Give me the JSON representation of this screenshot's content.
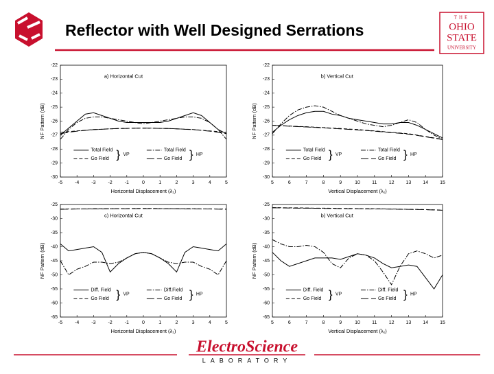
{
  "slide": {
    "title": "Reflector with Well Designed Serrations",
    "university": [
      "THE",
      "OHIO",
      "STATE",
      "UNIVERSITY"
    ],
    "lab": "ElectroScience",
    "lab_sub": "LABORATORY"
  },
  "chart_data": [
    {
      "type": "line",
      "annotation": "a) Horizontal Cut",
      "xlabel": "Horizontal Displacement (λ₁)",
      "ylabel": "NF Pattern (dB)",
      "x": [
        -5,
        -4.5,
        -4,
        -3.5,
        -3,
        -2.5,
        -2,
        -1.5,
        -1,
        -0.5,
        0,
        0.5,
        1,
        1.5,
        2,
        2.5,
        3,
        3.5,
        4,
        4.5,
        5
      ],
      "xlim": [
        -5,
        5
      ],
      "xticks": [
        -5,
        -4,
        -3,
        -2,
        -1,
        0,
        1,
        2,
        3,
        4,
        5
      ],
      "ylim": [
        -30,
        -22
      ],
      "yticks": [
        -30,
        -29,
        -28,
        -27,
        -26,
        -25,
        -24,
        -23,
        -22
      ],
      "series": [
        {
          "name": "Total Field",
          "group": "VP",
          "dash": "solid",
          "color": "#000000",
          "values": [
            -27.0,
            -26.5,
            -26.0,
            -25.5,
            -25.4,
            -25.6,
            -25.8,
            -26.0,
            -26.1,
            -26.1,
            -26.1,
            -26.1,
            -26.1,
            -26.0,
            -25.8,
            -25.6,
            -25.4,
            -25.6,
            -26.1,
            -26.6,
            -26.9
          ]
        },
        {
          "name": "Go Field",
          "group": "VP",
          "dash": "dashed",
          "color": "#000000",
          "values": [
            -26.8,
            -26.75,
            -26.7,
            -26.65,
            -26.6,
            -26.58,
            -26.55,
            -26.53,
            -26.52,
            -26.5,
            -26.5,
            -26.5,
            -26.52,
            -26.53,
            -26.55,
            -26.58,
            -26.6,
            -26.65,
            -26.7,
            -26.75,
            -26.8
          ]
        },
        {
          "name": "Total Field",
          "group": "HP",
          "dash": "dashdot",
          "color": "#000000",
          "values": [
            -27.3,
            -26.6,
            -26.1,
            -25.8,
            -25.7,
            -25.7,
            -25.8,
            -25.9,
            -26.0,
            -26.1,
            -26.2,
            -26.1,
            -26.0,
            -25.9,
            -25.8,
            -25.7,
            -25.7,
            -25.8,
            -26.1,
            -26.6,
            -27.3
          ]
        },
        {
          "name": "Go Field",
          "group": "HP",
          "dash": "longdash",
          "color": "#000000",
          "values": [
            -26.9,
            -26.8,
            -26.72,
            -26.66,
            -26.61,
            -26.58,
            -26.55,
            -26.53,
            -26.52,
            -26.51,
            -26.5,
            -26.51,
            -26.52,
            -26.53,
            -26.55,
            -26.58,
            -26.61,
            -26.66,
            -26.72,
            -26.8,
            -26.9
          ]
        }
      ]
    },
    {
      "type": "line",
      "annotation": "b) Vertical Cut",
      "xlabel": "Vertical Displacement (λ₁)",
      "ylabel": "NF Pattern (dB)",
      "x": [
        5,
        5.5,
        6,
        6.5,
        7,
        7.5,
        8,
        8.5,
        9,
        9.5,
        10,
        10.5,
        11,
        11.5,
        12,
        12.5,
        13,
        13.5,
        14,
        14.5,
        15
      ],
      "xlim": [
        5,
        15
      ],
      "xticks": [
        5,
        6,
        7,
        8,
        9,
        10,
        11,
        12,
        13,
        14,
        15
      ],
      "ylim": [
        -30,
        -22
      ],
      "yticks": [
        -30,
        -29,
        -28,
        -27,
        -26,
        -25,
        -24,
        -23,
        -22
      ],
      "series": [
        {
          "name": "Total Field",
          "group": "VP",
          "dash": "solid",
          "color": "#000000",
          "values": [
            -26.8,
            -26.3,
            -25.9,
            -25.6,
            -25.4,
            -25.3,
            -25.3,
            -25.5,
            -25.6,
            -25.8,
            -25.9,
            -26.0,
            -26.1,
            -26.2,
            -26.2,
            -26.1,
            -26.1,
            -26.3,
            -26.6,
            -26.9,
            -27.2
          ]
        },
        {
          "name": "Go Field",
          "group": "VP",
          "dash": "dashed",
          "color": "#000000",
          "values": [
            -26.3,
            -26.32,
            -26.35,
            -26.38,
            -26.4,
            -26.43,
            -26.46,
            -26.5,
            -26.53,
            -26.57,
            -26.6,
            -26.65,
            -26.7,
            -26.75,
            -26.8,
            -26.85,
            -26.9,
            -27.0,
            -27.1,
            -27.2,
            -27.3
          ]
        },
        {
          "name": "Total Field",
          "group": "HP",
          "dash": "dashdot",
          "color": "#000000",
          "values": [
            -26.9,
            -26.2,
            -25.6,
            -25.2,
            -25.0,
            -24.9,
            -25.0,
            -25.3,
            -25.6,
            -25.8,
            -26.0,
            -26.2,
            -26.3,
            -26.4,
            -26.3,
            -26.1,
            -25.9,
            -26.1,
            -26.6,
            -27.0,
            -27.3
          ]
        },
        {
          "name": "Go Field",
          "group": "HP",
          "dash": "longdash",
          "color": "#000000",
          "values": [
            -26.3,
            -26.33,
            -26.36,
            -26.39,
            -26.42,
            -26.45,
            -26.48,
            -26.52,
            -26.55,
            -26.59,
            -26.63,
            -26.67,
            -26.72,
            -26.77,
            -26.82,
            -26.87,
            -26.93,
            -27.02,
            -27.12,
            -27.22,
            -27.32
          ]
        }
      ]
    },
    {
      "type": "line",
      "annotation": "c) Horizontal Cut",
      "xlabel": "Horizontal Displacement (λ₁)",
      "ylabel": "NF Pattern (dB)",
      "x": [
        -5,
        -4.5,
        -4,
        -3.5,
        -3,
        -2.5,
        -2,
        -1.5,
        -1,
        -0.5,
        0,
        0.5,
        1,
        1.5,
        2,
        2.5,
        3,
        3.5,
        4,
        4.5,
        5
      ],
      "xlim": [
        -5,
        5
      ],
      "xticks": [
        -5,
        -4,
        -3,
        -2,
        -1,
        0,
        1,
        2,
        3,
        4,
        5
      ],
      "ylim": [
        -65,
        -25
      ],
      "yticks": [
        -65,
        -60,
        -55,
        -50,
        -45,
        -40,
        -35,
        -30,
        -25
      ],
      "series": [
        {
          "name": "Diff. Field",
          "group": "VP",
          "dash": "solid",
          "color": "#000000",
          "values": [
            -39,
            -41.5,
            -41,
            -40.5,
            -40,
            -42,
            -49,
            -46,
            -44,
            -42.5,
            -42,
            -42.5,
            -44,
            -46,
            -49,
            -42,
            -40,
            -40.5,
            -41,
            -41.5,
            -39
          ]
        },
        {
          "name": "Go Field",
          "group": "VP",
          "dash": "dashed",
          "color": "#000000",
          "values": [
            -26.6,
            -26.6,
            -26.55,
            -26.55,
            -26.5,
            -26.5,
            -26.5,
            -26.45,
            -26.45,
            -26.4,
            -26.4,
            -26.4,
            -26.45,
            -26.45,
            -26.5,
            -26.5,
            -26.5,
            -26.55,
            -26.55,
            -26.6,
            -26.6
          ]
        },
        {
          "name": "Diff.Field",
          "group": "HP",
          "dash": "dashdot",
          "color": "#000000",
          "values": [
            -45,
            -50,
            -48,
            -47,
            -45.5,
            -45.5,
            -46,
            -45.5,
            -44,
            -42.5,
            -42,
            -42.5,
            -44,
            -45.5,
            -46,
            -45.5,
            -45.5,
            -47,
            -48,
            -50,
            -45
          ]
        },
        {
          "name": "Go Field",
          "group": "HP",
          "dash": "longdash",
          "color": "#000000",
          "values": [
            -26.7,
            -26.65,
            -26.6,
            -26.6,
            -26.55,
            -26.55,
            -26.5,
            -26.5,
            -26.5,
            -26.45,
            -26.45,
            -26.45,
            -26.5,
            -26.5,
            -26.5,
            -26.55,
            -26.55,
            -26.6,
            -26.6,
            -26.65,
            -26.7
          ]
        }
      ]
    },
    {
      "type": "line",
      "annotation": "b) Vertical Cut",
      "xlabel": "Vertical Displacement (λ₁)",
      "ylabel": "NF Pattern (dB)",
      "x": [
        5,
        5.5,
        6,
        6.5,
        7,
        7.5,
        8,
        8.5,
        9,
        9.5,
        10,
        10.5,
        11,
        11.5,
        12,
        12.5,
        13,
        13.5,
        14,
        14.5,
        15
      ],
      "xlim": [
        5,
        15
      ],
      "xticks": [
        5,
        6,
        7,
        8,
        9,
        10,
        11,
        12,
        13,
        14,
        15
      ],
      "ylim": [
        -65,
        -25
      ],
      "yticks": [
        -65,
        -60,
        -55,
        -50,
        -45,
        -40,
        -35,
        -30,
        -25
      ],
      "series": [
        {
          "name": "Diff. Field",
          "group": "VP",
          "dash": "solid",
          "color": "#000000",
          "values": [
            -42,
            -45,
            -47,
            -46,
            -45,
            -44,
            -44,
            -44,
            -44.5,
            -43.5,
            -42.5,
            -43,
            -44,
            -46,
            -47.5,
            -47,
            -46.5,
            -47,
            -51,
            -55,
            -50
          ]
        },
        {
          "name": "Go Field",
          "group": "VP",
          "dash": "dashed",
          "color": "#000000",
          "values": [
            -26.1,
            -26.15,
            -26.2,
            -26.2,
            -26.25,
            -26.3,
            -26.3,
            -26.35,
            -26.4,
            -26.4,
            -26.45,
            -26.5,
            -26.5,
            -26.55,
            -26.6,
            -26.65,
            -26.7,
            -26.75,
            -26.8,
            -26.9,
            -27.0
          ]
        },
        {
          "name": "Diff. Field",
          "group": "HP",
          "dash": "dashdot",
          "color": "#000000",
          "values": [
            -37.5,
            -39,
            -40,
            -40,
            -39.5,
            -40,
            -42,
            -46,
            -47.5,
            -44,
            -42.5,
            -43,
            -45,
            -49,
            -53.5,
            -47,
            -42.5,
            -41.5,
            -42.5,
            -44,
            -43
          ]
        },
        {
          "name": "Go Field",
          "group": "HP",
          "dash": "longdash",
          "color": "#000000",
          "values": [
            -26.2,
            -26.2,
            -26.25,
            -26.3,
            -26.3,
            -26.35,
            -26.4,
            -26.4,
            -26.45,
            -26.5,
            -26.5,
            -26.55,
            -26.6,
            -26.6,
            -26.65,
            -26.7,
            -26.75,
            -26.8,
            -26.85,
            -26.95,
            -27.05
          ]
        }
      ]
    }
  ]
}
